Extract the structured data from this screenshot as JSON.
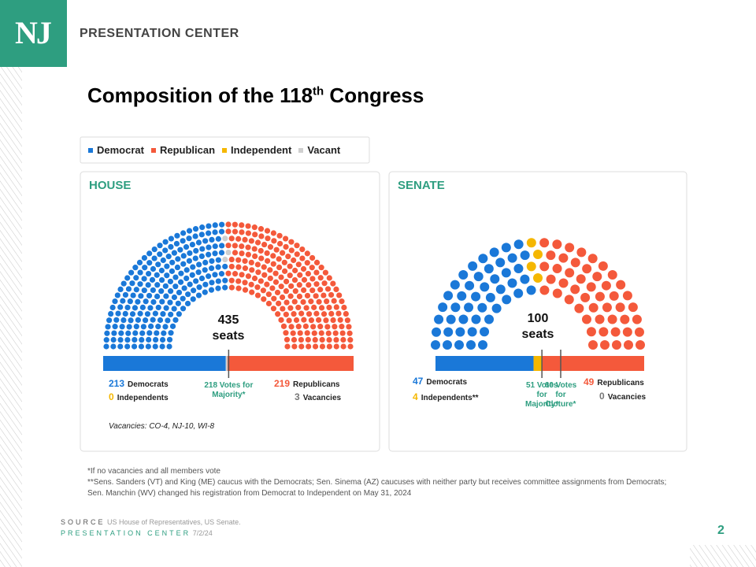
{
  "header": {
    "logo": "NJ",
    "org": "PRESENTATION CENTER"
  },
  "title": {
    "text": "Composition of the 118",
    "sup": "th",
    "suffix": " Congress"
  },
  "legend": [
    {
      "name": "Democrat",
      "color": "#1a78d8"
    },
    {
      "name": "Republican",
      "color": "#f4593b"
    },
    {
      "name": "Independent",
      "color": "#f5b700"
    },
    {
      "name": "Vacant",
      "color": "#cfcfcf"
    }
  ],
  "chart_data": [
    {
      "type": "parliament",
      "title": "HOUSE",
      "total": 435,
      "total_label": "seats",
      "categories": [
        "Democrats",
        "Independents",
        "Republicans",
        "Vacancies"
      ],
      "values": [
        213,
        0,
        219,
        3
      ],
      "colors": [
        "#1a78d8",
        "#f5b700",
        "#f4593b",
        "#cfcfcf"
      ],
      "thresholds": [
        {
          "value": 218,
          "label": "218 Votes for Majority*"
        }
      ],
      "note": "Vacancies: CO-4, NJ-10, WI-8"
    },
    {
      "type": "parliament",
      "title": "SENATE",
      "total": 100,
      "total_label": "seats",
      "categories": [
        "Democrats",
        "Independents**",
        "Republicans",
        "Vacancies"
      ],
      "values": [
        47,
        4,
        49,
        0
      ],
      "colors": [
        "#1a78d8",
        "#f5b700",
        "#f4593b",
        "#cfcfcf"
      ],
      "thresholds": [
        {
          "value": 51,
          "label": "51 Votes for Majority*"
        },
        {
          "value": 60,
          "label": "60 Votes for Cloture*"
        }
      ]
    }
  ],
  "footnotes": [
    "*If no vacancies and all members vote",
    "**Sens. Sanders (VT) and King (ME) caucus with the Democrats; Sen. Sinema (AZ) caucuses with neither party but receives committee assignments from Democrats; Sen. Manchin (WV) changed his registration from Democrat to Independent on May 31, 2024"
  ],
  "source": {
    "label": "SOURCE",
    "text": "US House of Representatives, US Senate."
  },
  "credit": {
    "label": "PRESENTATION CENTER",
    "date": "7/2/24"
  },
  "page_number": "2"
}
